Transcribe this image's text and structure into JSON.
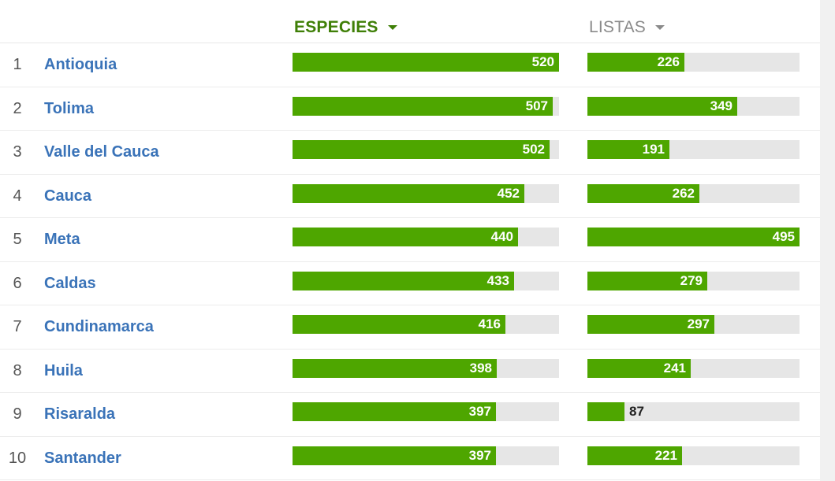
{
  "columns": {
    "species_label": "ESPECIES",
    "lists_label": "LISTAS"
  },
  "colors": {
    "bar_fill": "#4ea600",
    "bar_track": "#e6e6e6",
    "region_link": "#3a73b8",
    "active_header": "#3f7f07",
    "inactive_header": "#8a8a8a"
  },
  "rows": [
    {
      "rank": "1",
      "name": "Antioquia",
      "species": 520,
      "lists": 226
    },
    {
      "rank": "2",
      "name": "Tolima",
      "species": 507,
      "lists": 349
    },
    {
      "rank": "3",
      "name": "Valle del Cauca",
      "species": 502,
      "lists": 191
    },
    {
      "rank": "4",
      "name": "Cauca",
      "species": 452,
      "lists": 262
    },
    {
      "rank": "5",
      "name": "Meta",
      "species": 440,
      "lists": 495
    },
    {
      "rank": "6",
      "name": "Caldas",
      "species": 433,
      "lists": 279
    },
    {
      "rank": "7",
      "name": "Cundinamarca",
      "species": 416,
      "lists": 297
    },
    {
      "rank": "8",
      "name": "Huila",
      "species": 398,
      "lists": 241
    },
    {
      "rank": "9",
      "name": "Risaralda",
      "species": 397,
      "lists": 87
    },
    {
      "rank": "10",
      "name": "Santander",
      "species": 397,
      "lists": 221
    }
  ]
}
